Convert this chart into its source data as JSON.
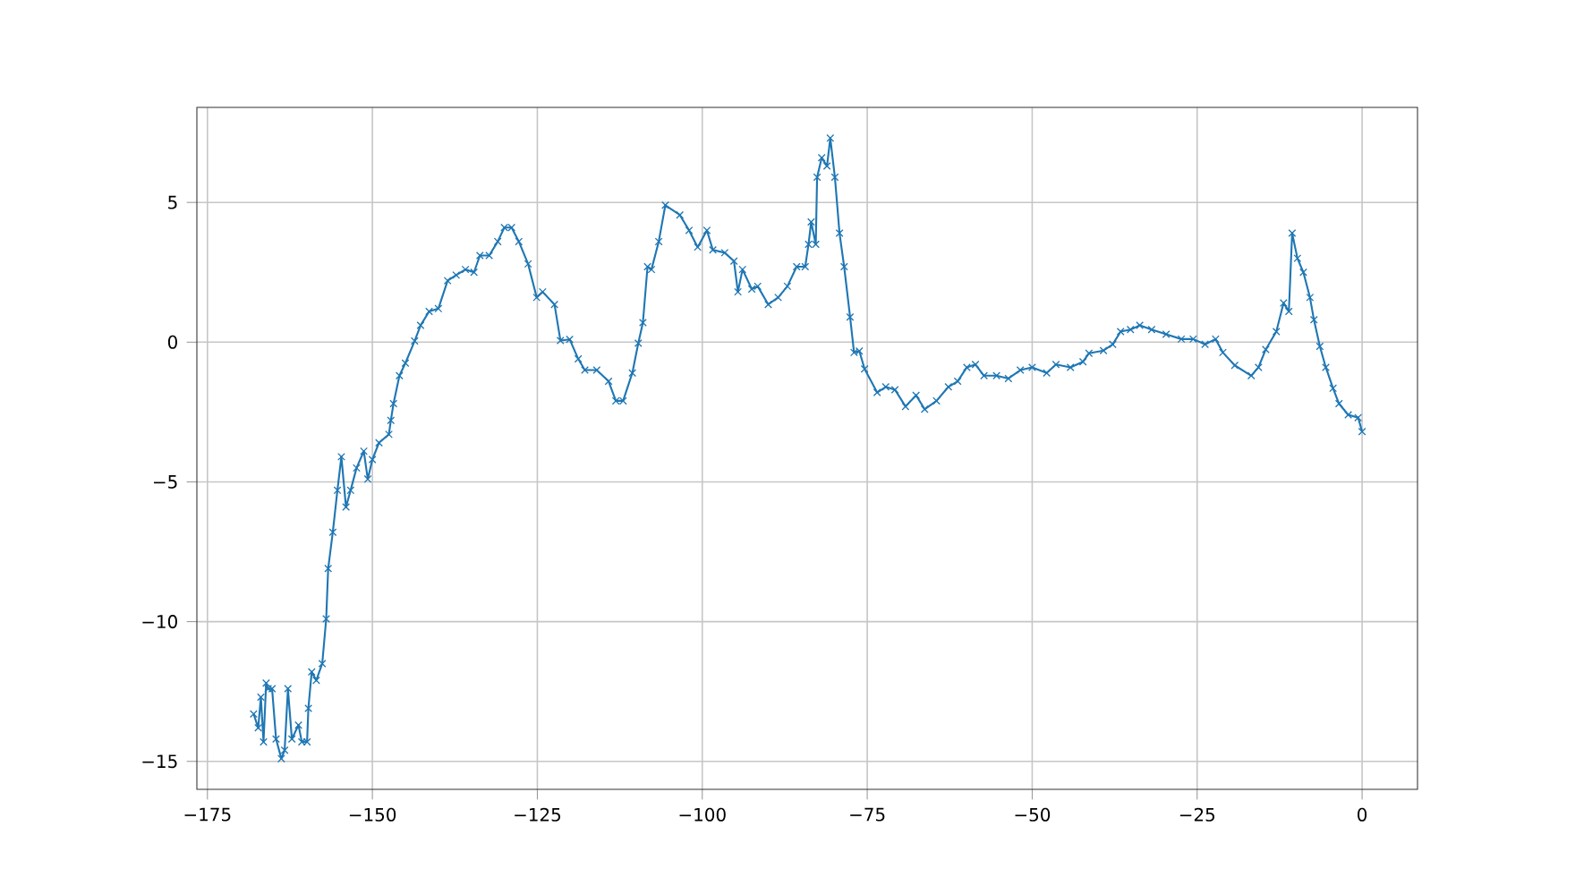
{
  "chart_data": {
    "type": "line",
    "color": "#1f77b4",
    "marker": "cross",
    "line_style": "solid",
    "grid": true,
    "xlim": [
      -176.6,
      8.4
    ],
    "ylim": [
      -16.0,
      8.4
    ],
    "xticks": [
      {
        "value": -175,
        "label": "−175"
      },
      {
        "value": -150,
        "label": "−150"
      },
      {
        "value": -125,
        "label": "−125"
      },
      {
        "value": -100,
        "label": "−100"
      },
      {
        "value": -75,
        "label": "−75"
      },
      {
        "value": -50,
        "label": "−50"
      },
      {
        "value": -25,
        "label": "−25"
      },
      0
    ],
    "yticks": [
      {
        "value": -15,
        "label": "−15"
      },
      {
        "value": -10,
        "label": "−10"
      },
      {
        "value": -5,
        "label": "−5"
      },
      0,
      5
    ],
    "x": [
      -168.0,
      -167.3,
      -166.9,
      -166.5,
      -166.1,
      -165.8,
      -165.2,
      -164.6,
      -163.8,
      -163.3,
      -162.8,
      -162.2,
      -161.2,
      -160.7,
      -159.9,
      -159.7,
      -159.2,
      -158.5,
      -157.6,
      -157.0,
      -156.7,
      -156.0,
      -155.3,
      -154.7,
      -154.0,
      -153.3,
      -152.4,
      -151.3,
      -150.7,
      -150.0,
      -149.0,
      -147.5,
      -147.2,
      -146.8,
      -145.9,
      -145.0,
      -143.6,
      -142.7,
      -141.4,
      -140.0,
      -138.6,
      -137.3,
      -135.9,
      -134.6,
      -133.7,
      -132.3,
      -131.0,
      -130.0,
      -128.9,
      -127.8,
      -126.4,
      -125.1,
      -124.2,
      -122.4,
      -121.5,
      -120.1,
      -118.8,
      -117.8,
      -116.0,
      -114.2,
      -113.1,
      -112.0,
      -110.6,
      -109.7,
      -109.0,
      -108.3,
      -107.7,
      -106.6,
      -105.6,
      -103.4,
      -102.0,
      -100.7,
      -99.3,
      -98.4,
      -96.6,
      -95.2,
      -94.6,
      -93.9,
      -92.5,
      -91.6,
      -90.0,
      -88.5,
      -87.1,
      -85.7,
      -84.4,
      -83.9,
      -83.5,
      -82.8,
      -82.6,
      -81.9,
      -81.1,
      -80.6,
      -79.9,
      -79.2,
      -78.5,
      -77.6,
      -77.0,
      -76.2,
      -75.4,
      -73.5,
      -72.2,
      -70.8,
      -69.2,
      -67.6,
      -66.3,
      -64.5,
      -62.7,
      -61.3,
      -59.9,
      -58.6,
      -57.3,
      -55.4,
      -53.6,
      -51.8,
      -50.0,
      -47.8,
      -46.4,
      -44.2,
      -42.3,
      -41.4,
      -39.2,
      -37.8,
      -36.6,
      -35.1,
      -33.7,
      -31.9,
      -29.7,
      -27.4,
      -25.6,
      -23.8,
      -22.2,
      -21.1,
      -19.3,
      -16.8,
      -15.7,
      -14.6,
      -13.0,
      -11.9,
      -11.1,
      -10.6,
      -9.8,
      -8.9,
      -7.9,
      -7.3,
      -6.4,
      -5.5,
      -4.4,
      -3.5,
      -2.1,
      -0.6,
      0
    ],
    "values": [
      -13.3,
      -13.8,
      -12.7,
      -14.3,
      -12.2,
      -12.4,
      -12.4,
      -14.2,
      -14.9,
      -14.6,
      -12.4,
      -14.2,
      -13.7,
      -14.3,
      -14.3,
      -13.1,
      -11.8,
      -12.1,
      -11.5,
      -9.9,
      -8.1,
      -6.8,
      -5.3,
      -4.1,
      -5.9,
      -5.3,
      -4.5,
      -3.9,
      -4.9,
      -4.2,
      -3.6,
      -3.3,
      -2.8,
      -2.2,
      -1.2,
      -0.75,
      0.04,
      0.6,
      1.1,
      1.2,
      2.2,
      2.4,
      2.6,
      2.5,
      3.1,
      3.1,
      3.6,
      4.1,
      4.1,
      3.6,
      2.8,
      1.6,
      1.8,
      1.35,
      0.06,
      0.1,
      -0.6,
      -1.0,
      -1.0,
      -1.4,
      -2.1,
      -2.1,
      -1.1,
      -0.04,
      0.7,
      2.7,
      2.6,
      3.6,
      4.9,
      4.55,
      4.0,
      3.4,
      4.0,
      3.3,
      3.2,
      2.9,
      1.8,
      2.6,
      1.9,
      2.0,
      1.35,
      1.6,
      2.0,
      2.7,
      2.7,
      3.5,
      4.3,
      3.5,
      5.9,
      6.6,
      6.3,
      7.3,
      5.9,
      3.9,
      2.7,
      0.9,
      -0.37,
      -0.32,
      -0.96,
      -1.8,
      -1.6,
      -1.7,
      -2.3,
      -1.9,
      -2.4,
      -2.1,
      -1.6,
      -1.4,
      -0.9,
      -0.8,
      -1.2,
      -1.2,
      -1.3,
      -1.0,
      -0.9,
      -1.1,
      -0.8,
      -0.9,
      -0.7,
      -0.4,
      -0.3,
      -0.08,
      0.38,
      0.45,
      0.6,
      0.45,
      0.28,
      0.11,
      0.11,
      -0.08,
      0.11,
      -0.37,
      -0.83,
      -1.2,
      -0.9,
      -0.26,
      0.38,
      1.4,
      1.1,
      3.9,
      3.0,
      2.5,
      1.6,
      0.8,
      -0.15,
      -0.9,
      -1.65,
      -2.2,
      -2.6,
      -2.7,
      -3.2
    ]
  }
}
